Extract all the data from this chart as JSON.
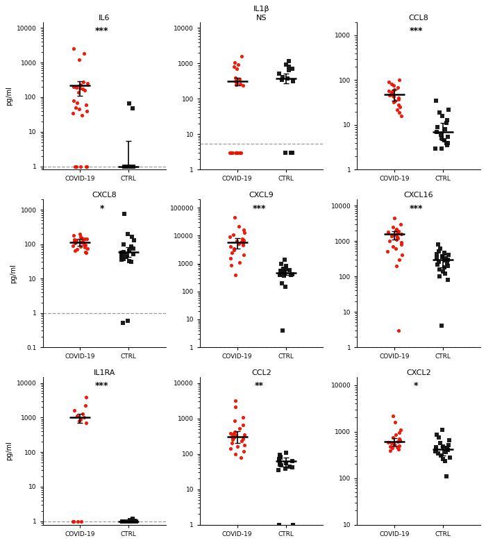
{
  "panels": [
    {
      "title": "IL6",
      "sig": "***",
      "sig_line2": null,
      "ylim": [
        0.8,
        15000
      ],
      "yticks": [
        1,
        10,
        100,
        1000,
        10000
      ],
      "dashed_line": 1.0,
      "covid": [
        2500,
        1800,
        1200,
        280,
        250,
        230,
        220,
        200,
        190,
        180,
        170,
        155,
        140,
        80,
        70,
        60,
        50,
        45,
        40,
        35,
        30,
        1,
        1,
        1,
        1,
        1
      ],
      "ctrl": [
        65,
        48,
        1,
        1,
        1,
        1,
        1,
        1,
        1,
        1
      ],
      "covid_median": 220,
      "covid_q1": 110,
      "covid_q3": 290,
      "ctrl_median": 1,
      "ctrl_q1": 1,
      "ctrl_q3": 5.5
    },
    {
      "title": "IL1β",
      "sig": "NS",
      "sig_line2": "NS",
      "ylim": [
        1,
        15000
      ],
      "yticks": [
        1,
        10,
        100,
        1000,
        10000
      ],
      "dashed_line": 5.5,
      "covid": [
        1600,
        1050,
        920,
        800,
        700,
        390,
        360,
        320,
        280,
        260,
        250,
        240,
        3,
        3,
        3,
        3,
        3,
        3,
        3,
        3,
        3
      ],
      "ctrl": [
        1150,
        950,
        830,
        720,
        650,
        510,
        420,
        380,
        340,
        310,
        3,
        3,
        3
      ],
      "covid_median": 310,
      "covid_q1": 240,
      "covid_q3": 390,
      "ctrl_median": 370,
      "ctrl_q1": 280,
      "ctrl_q3": 530
    },
    {
      "title": "CCL8",
      "sig": "***",
      "sig_line2": null,
      "ylim": [
        1,
        2000
      ],
      "yticks": [
        1,
        10,
        100,
        1000
      ],
      "dashed_line": null,
      "covid": [
        100,
        90,
        82,
        75,
        68,
        62,
        58,
        55,
        52,
        50,
        47,
        45,
        43,
        40,
        38,
        35,
        32,
        28,
        25,
        22,
        19,
        16
      ],
      "ctrl": [
        35,
        22,
        19,
        16,
        13,
        11,
        9,
        8,
        7,
        6,
        5.5,
        5,
        4.5,
        4,
        4,
        3.5,
        3,
        3
      ],
      "covid_median": 48,
      "covid_q1": 35,
      "covid_q3": 62,
      "ctrl_median": 7,
      "ctrl_q1": 4.5,
      "ctrl_q3": 11
    },
    {
      "title": "CXCL8",
      "sig": "*",
      "sig_line2": null,
      "ylim": [
        0.1,
        2000
      ],
      "yticks": [
        0.1,
        1,
        10,
        100,
        1000
      ],
      "dashed_line": 1.0,
      "covid": [
        200,
        180,
        160,
        150,
        145,
        140,
        135,
        130,
        125,
        120,
        115,
        110,
        105,
        100,
        95,
        90,
        85,
        80,
        75,
        70,
        65,
        60,
        55
      ],
      "ctrl": [
        750,
        200,
        160,
        130,
        100,
        85,
        75,
        65,
        60,
        55,
        52,
        50,
        47,
        45,
        42,
        40,
        37,
        35,
        32,
        30,
        0.6,
        0.5
      ],
      "covid_median": 115,
      "covid_q1": 90,
      "covid_q3": 140,
      "ctrl_median": 58,
      "ctrl_q1": 42,
      "ctrl_q3": 80
    },
    {
      "title": "CXCL9",
      "sig": "***",
      "sig_line2": null,
      "ylim": [
        1,
        200000
      ],
      "yticks": [
        1,
        10,
        100,
        1000,
        10000,
        100000
      ],
      "dashed_line": 1.0,
      "covid": [
        45000,
        22000,
        16000,
        13000,
        11000,
        9000,
        7500,
        7000,
        6500,
        6000,
        5500,
        5000,
        4500,
        4000,
        3500,
        3000,
        2500,
        2000,
        1500,
        1100,
        850,
        400
      ],
      "ctrl": [
        1400,
        1000,
        800,
        700,
        650,
        580,
        540,
        510,
        480,
        460,
        440,
        420,
        400,
        380,
        360,
        200,
        150,
        4
      ],
      "covid_median": 5800,
      "covid_q1": 3500,
      "covid_q3": 8000,
      "ctrl_median": 470,
      "ctrl_q1": 380,
      "ctrl_q3": 580
    },
    {
      "title": "CXCL16",
      "sig": "***",
      "sig_line2": null,
      "ylim": [
        1,
        15000
      ],
      "yticks": [
        1,
        10,
        100,
        1000,
        10000
      ],
      "dashed_line": 1.0,
      "covid": [
        4500,
        3000,
        2500,
        2200,
        2000,
        1900,
        1800,
        1700,
        1600,
        1500,
        1400,
        1300,
        1200,
        1100,
        1000,
        900,
        800,
        700,
        600,
        500,
        400,
        300,
        200,
        3
      ],
      "ctrl": [
        800,
        600,
        500,
        460,
        420,
        400,
        380,
        360,
        340,
        320,
        300,
        280,
        260,
        240,
        220,
        200,
        180,
        160,
        140,
        120,
        100,
        80,
        4
      ],
      "covid_median": 1600,
      "covid_q1": 1100,
      "covid_q3": 1900,
      "ctrl_median": 300,
      "ctrl_q1": 180,
      "ctrl_q3": 400
    },
    {
      "title": "IL1RA",
      "sig": "***",
      "sig_line2": null,
      "ylim": [
        0.8,
        15000
      ],
      "yticks": [
        1,
        10,
        100,
        1000,
        10000
      ],
      "dashed_line": 1.0,
      "covid": [
        3800,
        2200,
        1600,
        1300,
        1100,
        1000,
        900,
        800,
        700,
        1,
        1,
        1,
        1
      ],
      "ctrl": [
        1.2,
        1.1,
        1.05,
        1,
        1,
        1,
        1,
        1,
        1
      ],
      "covid_median": 1000,
      "covid_q1": 700,
      "covid_q3": 1300,
      "ctrl_median": 1,
      "ctrl_q1": 1,
      "ctrl_q3": 1
    },
    {
      "title": "CCL2",
      "sig": "**",
      "sig_line2": null,
      "ylim": [
        1,
        15000
      ],
      "yticks": [
        1,
        10,
        100,
        1000,
        10000
      ],
      "dashed_line": 1.0,
      "covid": [
        3200,
        2100,
        1100,
        850,
        650,
        520,
        420,
        390,
        370,
        350,
        330,
        310,
        290,
        270,
        250,
        230,
        200,
        180,
        160,
        140,
        120,
        100,
        80
      ],
      "ctrl": [
        110,
        95,
        88,
        82,
        77,
        72,
        67,
        62,
        58,
        54,
        50,
        47,
        44,
        41,
        38,
        35,
        1,
        1
      ],
      "covid_median": 310,
      "covid_q1": 200,
      "covid_q3": 430,
      "ctrl_median": 62,
      "ctrl_q1": 44,
      "ctrl_q3": 80
    },
    {
      "title": "CXCL2",
      "sig": "*",
      "sig_line2": null,
      "ylim": [
        10,
        15000
      ],
      "yticks": [
        10,
        100,
        1000,
        10000
      ],
      "dashed_line": null,
      "covid": [
        2200,
        1600,
        1100,
        950,
        850,
        750,
        700,
        660,
        630,
        600,
        580,
        560,
        540,
        520,
        500,
        480,
        460,
        440,
        420,
        390
      ],
      "ctrl": [
        1100,
        850,
        750,
        650,
        560,
        510,
        480,
        460,
        440,
        420,
        400,
        380,
        360,
        340,
        310,
        280,
        260,
        230,
        110
      ],
      "covid_median": 610,
      "covid_q1": 490,
      "covid_q3": 720,
      "ctrl_median": 420,
      "ctrl_q1": 310,
      "ctrl_q3": 480
    }
  ],
  "covid_color": "#EE1100",
  "ctrl_color": "#111111",
  "bg_color": "#FFFFFF",
  "xlabel_covid": "COVID-19",
  "xlabel_ctrl": "CTRL",
  "ylabel": "pg/ml",
  "jitter_seed": 7
}
